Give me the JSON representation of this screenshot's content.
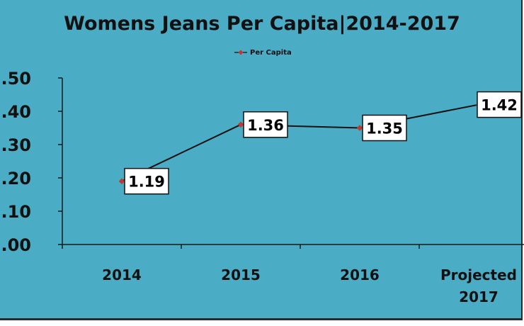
{
  "colors": {
    "background": "#4bacc6",
    "line": "#111111",
    "marker": "#c0392b",
    "label_box": "#ffffff"
  },
  "chart_data": {
    "type": "line",
    "title": "Womens Jeans Per Capita|2014-2017",
    "categories": [
      [
        "2014"
      ],
      [
        "2015"
      ],
      [
        "2016"
      ],
      [
        "Projected",
        "2017"
      ]
    ],
    "series": [
      {
        "name": "Per Capita",
        "values": [
          1.19,
          1.36,
          1.35,
          1.42
        ]
      }
    ],
    "data_labels": [
      "1.19",
      "1.36",
      "1.35",
      "1.42"
    ],
    "y_tick_labels": [
      ".00",
      ".10",
      ".20",
      ".30",
      ".40",
      ".50"
    ],
    "ylim": [
      1.0,
      1.5
    ],
    "grid": false,
    "legend": "top"
  }
}
